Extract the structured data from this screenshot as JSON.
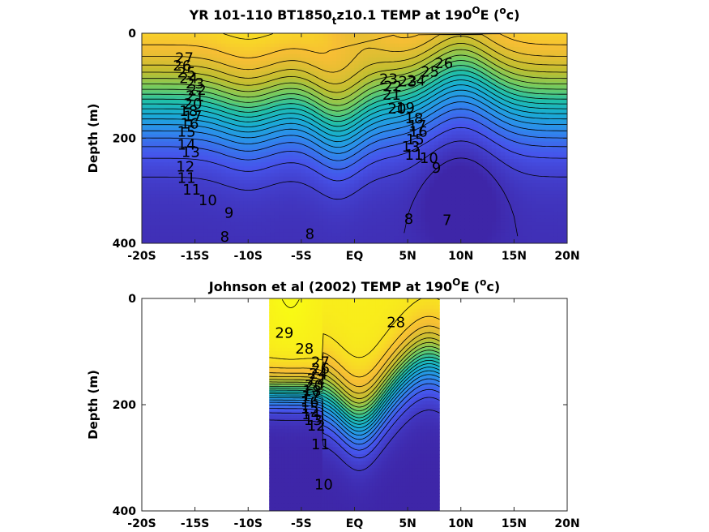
{
  "chart_data": [
    {
      "type": "heatmap",
      "title_parts": [
        "YR 101-110 BT1850",
        "t",
        "z10.1 TEMP at 190",
        "O",
        "E (",
        "o",
        "c)"
      ],
      "ylabel": "Depth (m)",
      "xlim": [
        -20,
        20
      ],
      "ylim": [
        0,
        400
      ],
      "y_reversed": true,
      "x_ticks": [
        -20,
        -15,
        -10,
        -5,
        0,
        5,
        10,
        15,
        20
      ],
      "x_tick_labels": [
        "-20S",
        "-15S",
        "-10S",
        "-5S",
        "EQ",
        "5N",
        "10N",
        "15N",
        "20N"
      ],
      "y_ticks": [
        0,
        200,
        400
      ],
      "y_tick_labels": [
        "0",
        "200",
        "400"
      ],
      "data_extent_x": [
        -20,
        20
      ],
      "contour_interval": 1,
      "colormap": "parula",
      "contour_labels": [
        {
          "x": -16.0,
          "y": 47,
          "text": "27"
        },
        {
          "x": -16.2,
          "y": 62,
          "text": "26"
        },
        {
          "x": -15.8,
          "y": 75,
          "text": "25"
        },
        {
          "x": -15.6,
          "y": 86,
          "text": "24"
        },
        {
          "x": -15.0,
          "y": 96,
          "text": "23"
        },
        {
          "x": -14.8,
          "y": 108,
          "text": "22"
        },
        {
          "x": -15.0,
          "y": 120,
          "text": "21"
        },
        {
          "x": -15.2,
          "y": 134,
          "text": "20"
        },
        {
          "x": -15.6,
          "y": 148,
          "text": "18"
        },
        {
          "x": -15.2,
          "y": 158,
          "text": "17"
        },
        {
          "x": -15.5,
          "y": 172,
          "text": "16"
        },
        {
          "x": -15.8,
          "y": 188,
          "text": "15"
        },
        {
          "x": -15.8,
          "y": 212,
          "text": "14"
        },
        {
          "x": -15.4,
          "y": 226,
          "text": "13"
        },
        {
          "x": -15.9,
          "y": 254,
          "text": "12"
        },
        {
          "x": -15.8,
          "y": 276,
          "text": "11"
        },
        {
          "x": -15.3,
          "y": 298,
          "text": "11"
        },
        {
          "x": -13.8,
          "y": 318,
          "text": "10"
        },
        {
          "x": -11.8,
          "y": 342,
          "text": "9"
        },
        {
          "x": -12.2,
          "y": 388,
          "text": "8"
        },
        {
          "x": -4.2,
          "y": 382,
          "text": "8"
        },
        {
          "x": 3.2,
          "y": 87,
          "text": "23"
        },
        {
          "x": 3.6,
          "y": 101,
          "text": "22"
        },
        {
          "x": 3.5,
          "y": 117,
          "text": "21"
        },
        {
          "x": 4.0,
          "y": 144,
          "text": "20"
        },
        {
          "x": 4.8,
          "y": 142,
          "text": "19"
        },
        {
          "x": 5.6,
          "y": 162,
          "text": "18"
        },
        {
          "x": 5.9,
          "y": 176,
          "text": "17"
        },
        {
          "x": 6.0,
          "y": 188,
          "text": "16"
        },
        {
          "x": 5.7,
          "y": 202,
          "text": "15"
        },
        {
          "x": 5.3,
          "y": 216,
          "text": "13"
        },
        {
          "x": 5.6,
          "y": 232,
          "text": "11"
        },
        {
          "x": 7.0,
          "y": 238,
          "text": "10"
        },
        {
          "x": 7.7,
          "y": 256,
          "text": "9"
        },
        {
          "x": 5.1,
          "y": 354,
          "text": "8"
        },
        {
          "x": 8.7,
          "y": 356,
          "text": "7"
        },
        {
          "x": 5.0,
          "y": 92,
          "text": "23"
        },
        {
          "x": 5.8,
          "y": 90,
          "text": "24"
        },
        {
          "x": 7.1,
          "y": 73,
          "text": "25"
        },
        {
          "x": 8.4,
          "y": 57,
          "text": "26"
        }
      ]
    },
    {
      "type": "heatmap",
      "title_parts": [
        "Johnson et al (2002) TEMP at 190",
        "O",
        "E (",
        "o",
        "c)"
      ],
      "ylabel": "Depth (m)",
      "xlim": [
        -20,
        20
      ],
      "ylim": [
        0,
        400
      ],
      "y_reversed": true,
      "x_ticks": [
        -20,
        -15,
        -10,
        -5,
        0,
        5,
        10,
        15,
        20
      ],
      "x_tick_labels": [
        "-20S",
        "-15S",
        "-10S",
        "-5S",
        "EQ",
        "5N",
        "10N",
        "15N",
        "20N"
      ],
      "y_ticks": [
        0,
        200,
        400
      ],
      "y_tick_labels": [
        "0",
        "200",
        "400"
      ],
      "data_extent_x": [
        -8,
        8
      ],
      "contour_interval": 1,
      "colormap": "parula",
      "contour_labels": [
        {
          "x": -6.6,
          "y": 65,
          "text": "29"
        },
        {
          "x": -4.7,
          "y": 95,
          "text": "28"
        },
        {
          "x": 3.9,
          "y": 45,
          "text": "28"
        },
        {
          "x": -3.2,
          "y": 120,
          "text": "27"
        },
        {
          "x": -3.2,
          "y": 132,
          "text": "26"
        },
        {
          "x": -3.4,
          "y": 142,
          "text": "24"
        },
        {
          "x": -3.6,
          "y": 152,
          "text": "22"
        },
        {
          "x": -3.8,
          "y": 163,
          "text": "20"
        },
        {
          "x": -4.0,
          "y": 174,
          "text": "18"
        },
        {
          "x": -4.1,
          "y": 184,
          "text": "17"
        },
        {
          "x": -4.2,
          "y": 195,
          "text": "16"
        },
        {
          "x": -4.2,
          "y": 207,
          "text": "15"
        },
        {
          "x": -4.1,
          "y": 218,
          "text": "14"
        },
        {
          "x": -3.9,
          "y": 229,
          "text": "13"
        },
        {
          "x": -3.6,
          "y": 240,
          "text": "12"
        },
        {
          "x": -3.2,
          "y": 275,
          "text": "11"
        },
        {
          "x": -2.9,
          "y": 350,
          "text": "10"
        }
      ]
    }
  ]
}
